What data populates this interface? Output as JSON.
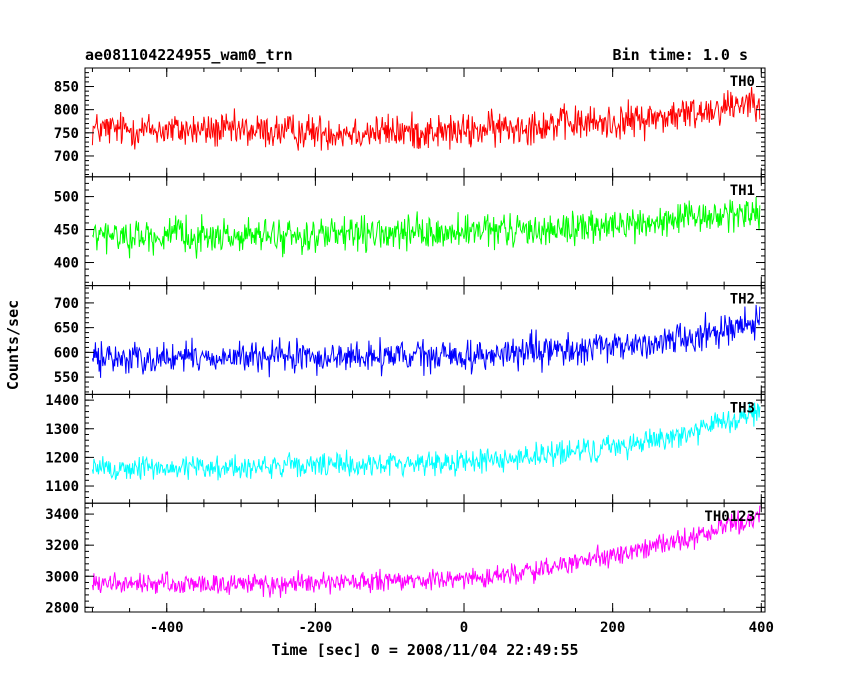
{
  "chart_data": {
    "type": "line",
    "title": "ae081104224955_wam0_trn",
    "bin_time": "Bin time: 1.0 s",
    "xlabel": "Time [sec] 0 = 2008/11/04 22:49:55",
    "ylabel": "Counts/sec",
    "xlim": [
      -510,
      405
    ],
    "x_ticks": [
      "-400",
      "-200",
      "0",
      "200",
      "400"
    ],
    "x_tick_values": [
      -400,
      -200,
      0,
      200,
      400
    ],
    "grid": false,
    "panels": [
      {
        "name": "TH0",
        "color": "#ff0000",
        "ylim": [
          655,
          890
        ],
        "y_ticks": [
          "700",
          "750",
          "800",
          "850"
        ],
        "y_tick_values": [
          700,
          750,
          800,
          850
        ],
        "trend_points": [
          [
            -500,
            758
          ],
          [
            -200,
            752
          ],
          [
            0,
            752
          ],
          [
            100,
            768
          ],
          [
            200,
            772
          ],
          [
            300,
            790
          ],
          [
            400,
            825
          ]
        ],
        "noise_amplitude": 42
      },
      {
        "name": "TH1",
        "color": "#00ff00",
        "ylim": [
          365,
          530
        ],
        "y_ticks": [
          "400",
          "450",
          "500"
        ],
        "y_tick_values": [
          400,
          450,
          500
        ],
        "trend_points": [
          [
            -500,
            440
          ],
          [
            -200,
            440
          ],
          [
            0,
            445
          ],
          [
            200,
            455
          ],
          [
            300,
            465
          ],
          [
            400,
            478
          ]
        ],
        "noise_amplitude": 28
      },
      {
        "name": "TH2",
        "color": "#0000ff",
        "ylim": [
          515,
          735
        ],
        "y_ticks": [
          "550",
          "600",
          "650",
          "700"
        ],
        "y_tick_values": [
          550,
          600,
          650,
          700
        ],
        "trend_points": [
          [
            -500,
            588
          ],
          [
            -200,
            590
          ],
          [
            0,
            592
          ],
          [
            200,
            610
          ],
          [
            300,
            630
          ],
          [
            400,
            665
          ]
        ],
        "noise_amplitude": 35
      },
      {
        "name": "TH3",
        "color": "#00ffff",
        "ylim": [
          1040,
          1420
        ],
        "y_ticks": [
          "1100",
          "1200",
          "1300",
          "1400"
        ],
        "y_tick_values": [
          1100,
          1200,
          1300,
          1400
        ],
        "trend_points": [
          [
            -500,
            1160
          ],
          [
            -200,
            1170
          ],
          [
            0,
            1185
          ],
          [
            100,
            1205
          ],
          [
            200,
            1235
          ],
          [
            300,
            1285
          ],
          [
            400,
            1360
          ]
        ],
        "noise_amplitude": 48
      },
      {
        "name": "TH0123",
        "color": "#ff00ff",
        "ylim": [
          2770,
          3470
        ],
        "y_ticks": [
          "2800",
          "3000",
          "3200",
          "3400"
        ],
        "y_tick_values": [
          2800,
          3000,
          3200,
          3400
        ],
        "trend_points": [
          [
            -500,
            2950
          ],
          [
            -200,
            2950
          ],
          [
            0,
            2980
          ],
          [
            100,
            3040
          ],
          [
            200,
            3130
          ],
          [
            300,
            3240
          ],
          [
            400,
            3390
          ]
        ],
        "noise_amplitude": 75
      }
    ]
  }
}
